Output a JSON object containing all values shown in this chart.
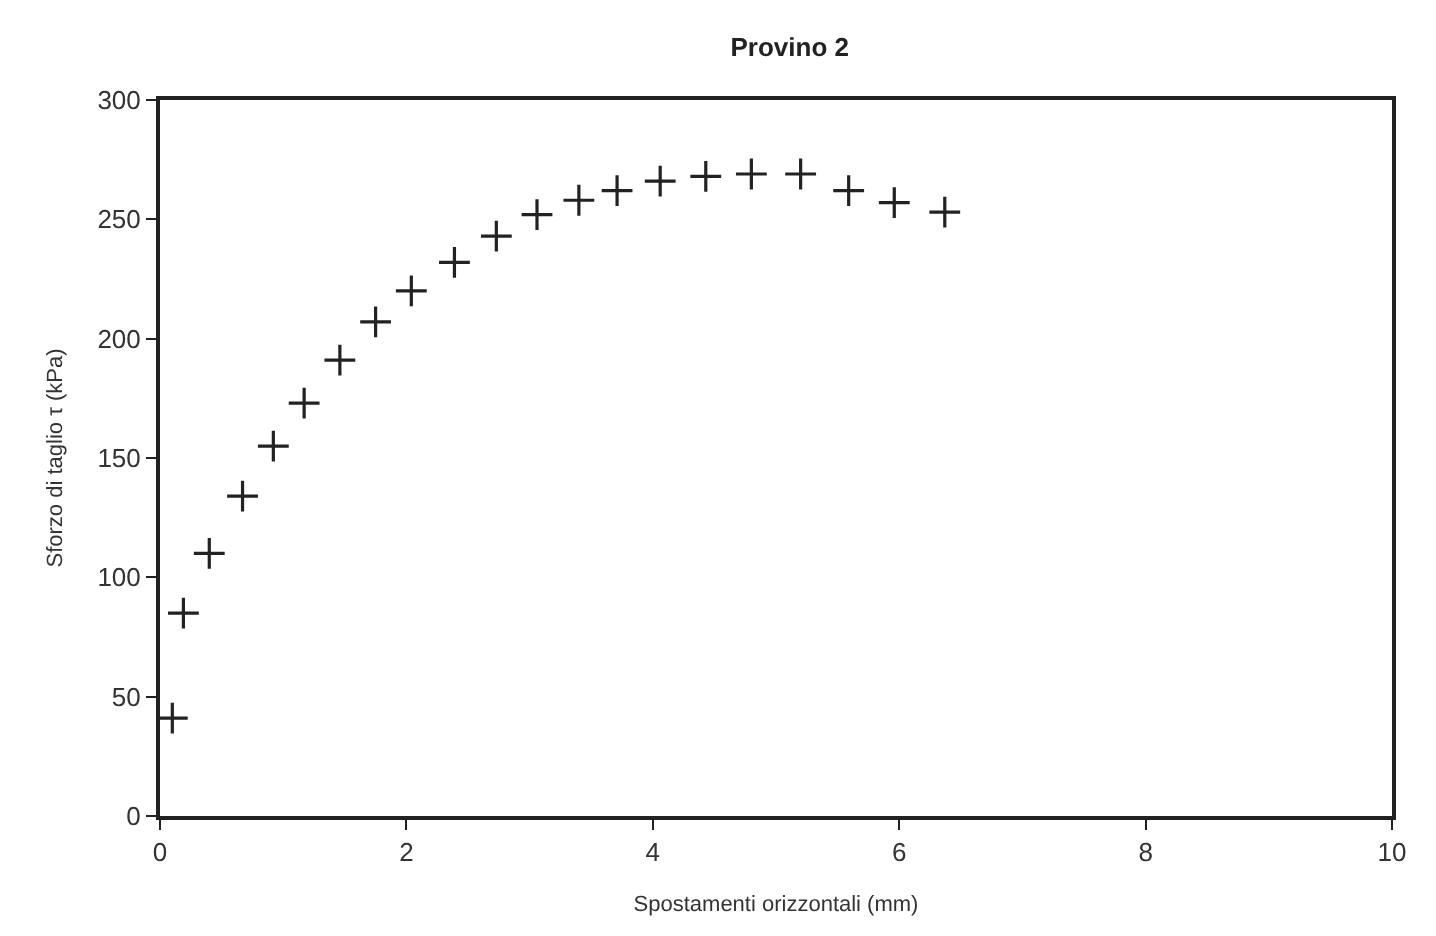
{
  "chart_data": {
    "type": "scatter",
    "title": "Provino 2",
    "xlabel": "Spostamenti orizzontali (mm)",
    "ylabel": "Sforzo di taglio τ (kPa)",
    "x": [
      0.1,
      0.19,
      0.4,
      0.67,
      0.92,
      1.17,
      1.46,
      1.75,
      2.04,
      2.39,
      2.73,
      3.06,
      3.4,
      3.71,
      4.06,
      4.43,
      4.8,
      5.2,
      5.59,
      5.96,
      6.37
    ],
    "series": [
      {
        "color": "#222222",
        "values": [
          41,
          85,
          110,
          134,
          155,
          173,
          191,
          207,
          220,
          232,
          243,
          252,
          258,
          262,
          266,
          268,
          269,
          269,
          262,
          257,
          253
        ]
      }
    ],
    "xlim": [
      0,
      10
    ],
    "xticks": [
      0,
      2,
      4,
      6,
      8,
      10
    ],
    "ylim": [
      0,
      300
    ],
    "yticks": [
      0,
      50,
      100,
      150,
      200,
      250,
      300
    ],
    "marker": "cross"
  }
}
